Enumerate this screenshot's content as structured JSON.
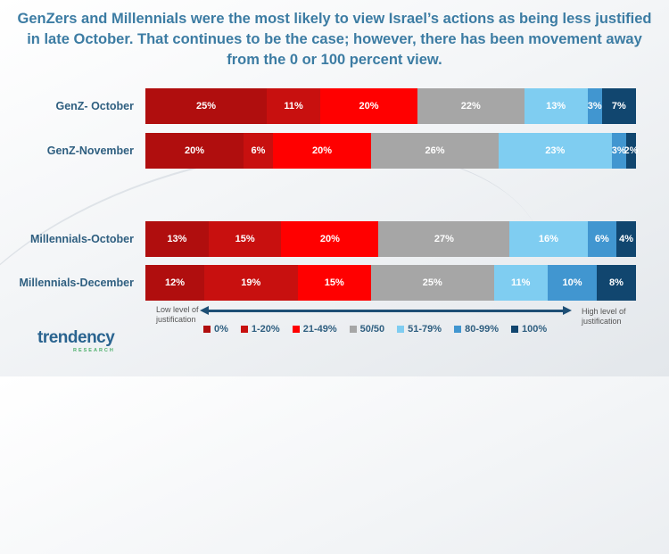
{
  "chart_data": {
    "type": "bar",
    "orientation": "horizontal",
    "stacked": true,
    "title": "GenZers and Millennials were the most likely to view Israel’s actions as being less justified in late October. That continues to be the case; however, there has been movement away from the 0 or 100 percent view.",
    "series": [
      {
        "name": "0%",
        "color": "#b00e0e"
      },
      {
        "name": "1-20%",
        "color": "#c8100f"
      },
      {
        "name": "21-49%",
        "color": "#ff0000"
      },
      {
        "name": "50/50",
        "color": "#a6a6a6"
      },
      {
        "name": "51-79%",
        "color": "#7fcdf1"
      },
      {
        "name": "80-99%",
        "color": "#4196d0"
      },
      {
        "name": "100%",
        "color": "#11466f"
      }
    ],
    "rows": [
      {
        "label": "GenZ- October",
        "values": [
          25,
          11,
          20,
          22,
          13,
          3,
          7
        ],
        "labels": [
          "25%",
          "11%",
          "20%",
          "22%",
          "13%",
          "3%",
          "7%"
        ]
      },
      {
        "label": "GenZ-November",
        "values": [
          20,
          6,
          20,
          26,
          23,
          3,
          2
        ],
        "labels": [
          "20%",
          "6%",
          "20%",
          "26%",
          "23%",
          "3%",
          "2%"
        ]
      },
      {
        "label": "Millennials-October",
        "values": [
          13,
          15,
          20,
          27,
          16,
          6,
          4
        ],
        "labels": [
          "13%",
          "15%",
          "20%",
          "27%",
          "16%",
          "6%",
          "4%"
        ]
      },
      {
        "label": "Millennials-December",
        "values": [
          12,
          19,
          15,
          25,
          11,
          10,
          8
        ],
        "labels": [
          "12%",
          "19%",
          "15%",
          "25%",
          "11%",
          "10%",
          "8%"
        ]
      }
    ],
    "axis_left_note": "Low level of justification",
    "axis_right_note": "High level of justification"
  },
  "logo": {
    "text": "trendency",
    "sub": "RESEARCH"
  }
}
